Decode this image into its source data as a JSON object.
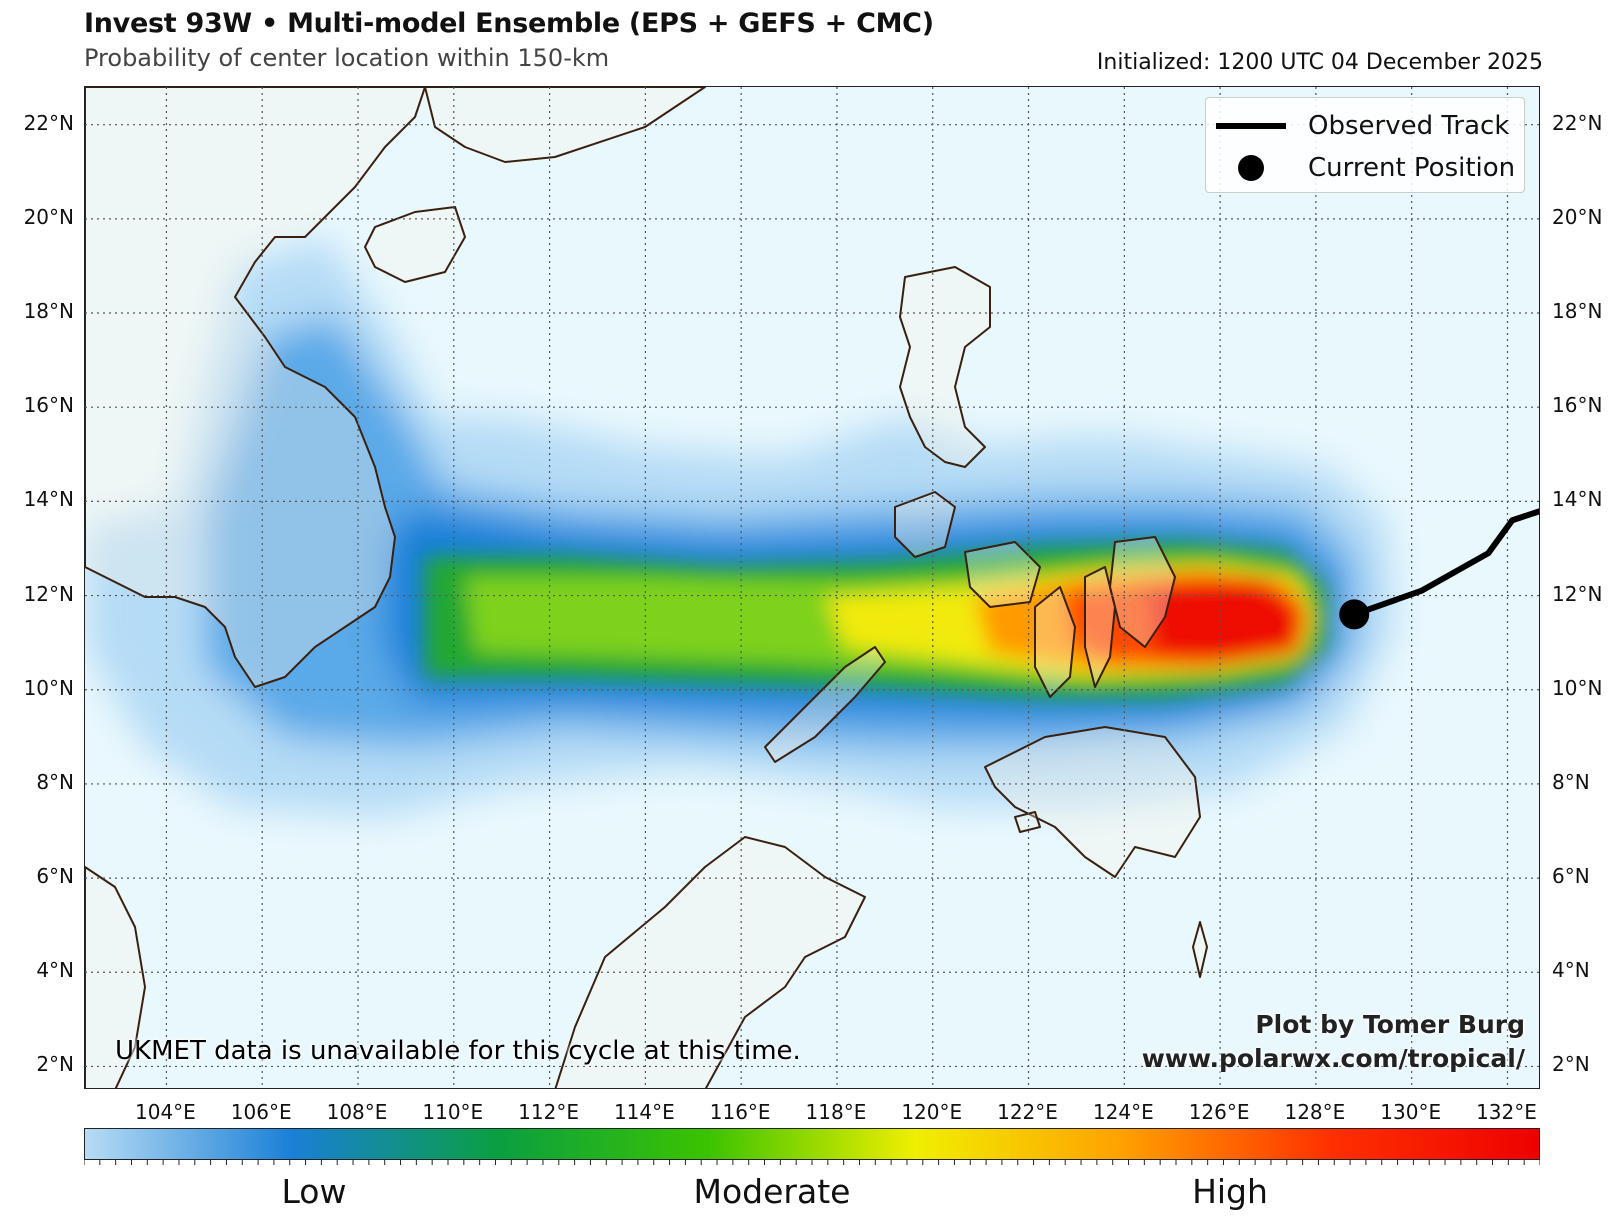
{
  "header": {
    "title": "Invest 93W • Multi-model Ensemble (EPS + GEFS + CMC)",
    "subtitle": "Probability of center location within 150-km",
    "initialized": "Initialized: 1200 UTC 04 December 2025"
  },
  "map": {
    "lon_range": [
      102.3,
      132.7
    ],
    "lat_range": [
      1.5,
      22.8
    ],
    "lat_ticks": [
      "2°N",
      "4°N",
      "6°N",
      "8°N",
      "10°N",
      "12°N",
      "14°N",
      "16°N",
      "18°N",
      "20°N",
      "22°N"
    ],
    "lon_ticks": [
      "104°E",
      "106°E",
      "108°E",
      "110°E",
      "112°E",
      "114°E",
      "116°E",
      "118°E",
      "120°E",
      "122°E",
      "124°E",
      "126°E",
      "128°E",
      "130°E",
      "132°E"
    ],
    "ocean_color": "#e9f8fd",
    "land_color": "#faf3e8",
    "coast_color": "#3a2010",
    "observed_track": [
      [
        132.7,
        13.8
      ],
      [
        132.1,
        13.6
      ],
      [
        131.6,
        12.9
      ],
      [
        130.2,
        12.1
      ],
      [
        128.8,
        11.6
      ]
    ],
    "current_position": [
      128.8,
      11.6
    ],
    "probability_swath": "Low values spread west across the South China Sea to Vietnam and Cambodia; moderate across Palawan and the Sulu Sea; high over the eastern Visayas and Samar",
    "peak_probability_center": [
      128.0,
      11.3
    ]
  },
  "legend": {
    "track_label": "Observed Track",
    "position_label": "Current Position"
  },
  "notes": {
    "ukmet": "UKMET data is unavailable for this cycle at this time.",
    "credit_line1": "Plot by Tomer Burg",
    "credit_line2": "www.polarwx.com/tropical/"
  },
  "colorbar": {
    "labels": [
      "Low",
      "Moderate",
      "High"
    ],
    "colors": [
      "#b7dcf5",
      "#1a7fd6",
      "#0aa040",
      "#3cc300",
      "#f0ef00",
      "#ffa000",
      "#ff3000",
      "#ee0000"
    ]
  }
}
